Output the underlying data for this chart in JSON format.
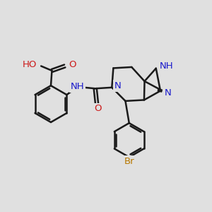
{
  "background_color": "#e0e0e0",
  "bond_color": "#1a1a1a",
  "bond_width": 1.8,
  "atom_colors": {
    "N": "#1a1acc",
    "O": "#cc1a1a",
    "Br": "#b87800",
    "NH": "#1a1acc",
    "HO": "#cc1a1a"
  },
  "font_size": 9.5
}
